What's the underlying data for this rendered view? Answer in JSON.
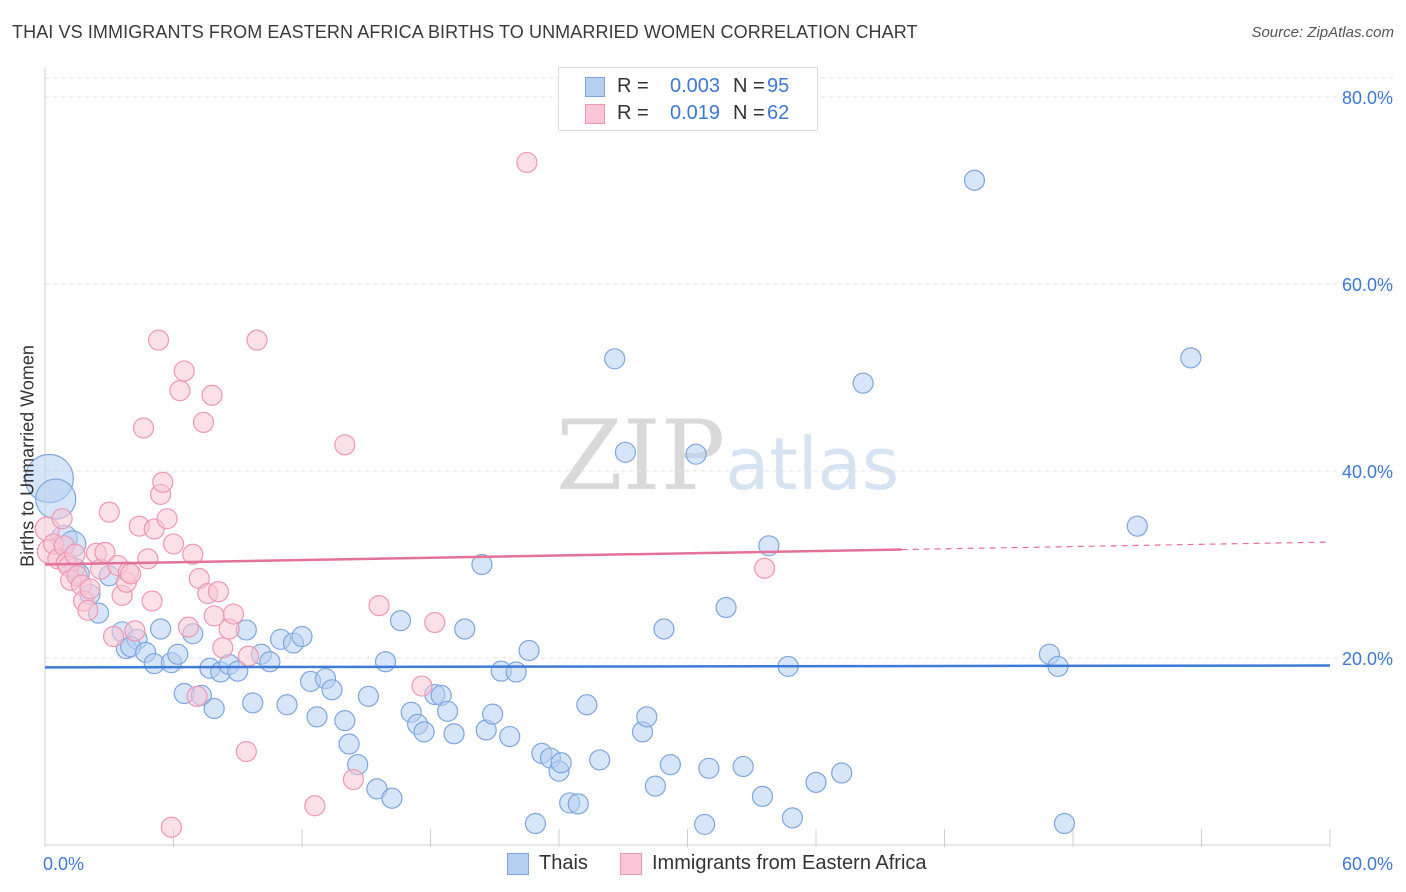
{
  "title": "THAI VS IMMIGRANTS FROM EASTERN AFRICA BIRTHS TO UNMARRIED WOMEN CORRELATION CHART",
  "source": "Source: ZipAtlas.com",
  "watermark": {
    "zip": "ZIP",
    "atlas": "atlas"
  },
  "legend": {
    "rows": [
      {
        "r_label": "R =",
        "r_value": "0.003",
        "n_label": "N =",
        "n_value": "95"
      },
      {
        "r_label": "R =",
        "r_value": "0.019",
        "n_label": "N =",
        "n_value": "62"
      }
    ]
  },
  "bottom_legend": [
    "Thais",
    "Immigrants from Eastern Africa"
  ],
  "colors": {
    "thais_fill": "#b7d0f2",
    "thais_stroke": "#7ea6de",
    "thais_line": "#3d7bd6",
    "eaf_fill": "#f8c6d6",
    "eaf_stroke": "#ee97b4",
    "eaf_line": "#e3719a",
    "axis_text": "#3f78d0",
    "grid": "#e2e2e2"
  },
  "chart_data": {
    "type": "scatter",
    "title": "THAI VS IMMIGRANTS FROM EASTERN AFRICA BIRTHS TO UNMARRIED WOMEN CORRELATION CHART",
    "xlabel": "",
    "ylabel": "Births to Unmarried Women",
    "xlim": [
      0,
      60
    ],
    "ylim": [
      0,
      80
    ],
    "x_tick_labels": [
      "0.0%",
      "60.0%"
    ],
    "y_tick_labels": [
      "20.0%",
      "40.0%",
      "60.0%",
      "80.0%"
    ],
    "y_ticks": [
      20,
      40,
      60,
      80
    ],
    "x_ticks": [
      0,
      6,
      12,
      18,
      24,
      30,
      36,
      42,
      48,
      54,
      60
    ],
    "series": [
      {
        "name": "Thais",
        "r": 0.003,
        "n": 95,
        "trend": {
          "x": [
            0,
            60
          ],
          "y": [
            19.0,
            19.2
          ],
          "dashed_from": null
        },
        "points": [
          [
            0.2,
            39.2,
            2.4
          ],
          [
            0.5,
            37.0,
            2.0
          ],
          [
            0.9,
            32.8,
            1.3
          ],
          [
            1.3,
            32.2,
            1.3
          ],
          [
            1.4,
            29.6,
            1.0
          ],
          [
            1.6,
            29.0,
            1.0
          ],
          [
            2.1,
            26.8,
            1.0
          ],
          [
            2.5,
            24.8,
            1.0
          ],
          [
            3.0,
            28.8,
            1.0
          ],
          [
            3.6,
            22.8,
            1.0
          ],
          [
            3.8,
            21.0,
            1.0
          ],
          [
            4.3,
            22.0,
            1.0
          ],
          [
            4.0,
            21.2,
            1.0
          ],
          [
            4.7,
            20.6,
            1.0
          ],
          [
            5.1,
            19.4,
            1.0
          ],
          [
            5.4,
            23.1,
            1.0
          ],
          [
            5.9,
            19.5,
            1.0
          ],
          [
            6.2,
            20.4,
            1.0
          ],
          [
            6.5,
            16.2,
            1.0
          ],
          [
            6.9,
            22.6,
            1.0
          ],
          [
            7.3,
            16.0,
            1.0
          ],
          [
            7.7,
            18.9,
            1.0
          ],
          [
            7.9,
            14.6,
            1.0
          ],
          [
            8.2,
            18.5,
            1.0
          ],
          [
            8.6,
            19.3,
            1.0
          ],
          [
            9.0,
            18.6,
            1.0
          ],
          [
            9.4,
            23.0,
            1.0
          ],
          [
            9.7,
            15.2,
            1.0
          ],
          [
            10.1,
            20.4,
            1.0
          ],
          [
            10.5,
            19.6,
            1.0
          ],
          [
            11.0,
            22.0,
            1.0
          ],
          [
            11.3,
            15.0,
            1.0
          ],
          [
            11.6,
            21.6,
            1.0
          ],
          [
            12.0,
            22.3,
            1.0
          ],
          [
            12.4,
            17.5,
            1.0
          ],
          [
            12.7,
            13.7,
            1.0
          ],
          [
            13.1,
            17.8,
            1.0
          ],
          [
            13.4,
            16.6,
            1.0
          ],
          [
            14.0,
            13.3,
            1.0
          ],
          [
            14.2,
            10.8,
            1.0
          ],
          [
            14.6,
            8.6,
            1.0
          ],
          [
            15.1,
            15.9,
            1.0
          ],
          [
            15.5,
            6.0,
            1.0
          ],
          [
            15.9,
            19.6,
            1.0
          ],
          [
            16.2,
            5.0,
            1.0
          ],
          [
            16.6,
            24.0,
            1.0
          ],
          [
            17.1,
            14.2,
            1.0
          ],
          [
            17.4,
            12.9,
            1.0
          ],
          [
            17.7,
            12.1,
            1.0
          ],
          [
            18.2,
            16.1,
            1.0
          ],
          [
            18.5,
            16.0,
            1.0
          ],
          [
            18.8,
            14.3,
            1.0
          ],
          [
            19.1,
            11.9,
            1.0
          ],
          [
            19.6,
            23.1,
            1.0
          ],
          [
            20.4,
            30.0,
            1.0
          ],
          [
            20.6,
            12.3,
            1.0
          ],
          [
            20.9,
            14.0,
            1.0
          ],
          [
            21.3,
            18.6,
            1.0
          ],
          [
            21.7,
            11.6,
            1.0
          ],
          [
            22.0,
            18.5,
            1.0
          ],
          [
            22.6,
            20.8,
            1.0
          ],
          [
            22.9,
            2.3,
            1.0
          ],
          [
            23.2,
            9.8,
            1.0
          ],
          [
            23.6,
            9.3,
            1.0
          ],
          [
            24.0,
            7.9,
            1.0
          ],
          [
            24.1,
            8.8,
            1.0
          ],
          [
            24.5,
            4.5,
            1.0
          ],
          [
            24.9,
            4.4,
            1.0
          ],
          [
            25.3,
            15.0,
            1.0
          ],
          [
            25.9,
            9.1,
            1.0
          ],
          [
            26.6,
            52.0,
            1.0
          ],
          [
            27.1,
            42.0,
            1.0
          ],
          [
            27.9,
            12.1,
            1.0
          ],
          [
            28.1,
            13.7,
            1.0
          ],
          [
            28.5,
            6.3,
            1.0
          ],
          [
            28.9,
            23.1,
            1.0
          ],
          [
            29.2,
            8.6,
            1.0
          ],
          [
            30.4,
            41.8,
            1.0
          ],
          [
            30.8,
            2.2,
            1.0
          ],
          [
            31.0,
            8.2,
            1.0
          ],
          [
            31.8,
            25.4,
            1.0
          ],
          [
            32.6,
            8.4,
            1.0
          ],
          [
            33.5,
            5.2,
            1.0
          ],
          [
            33.8,
            32.0,
            1.0
          ],
          [
            34.7,
            19.1,
            1.0
          ],
          [
            34.9,
            2.9,
            1.0
          ],
          [
            36.0,
            6.7,
            1.0
          ],
          [
            37.2,
            7.7,
            1.0
          ],
          [
            38.2,
            49.4,
            1.0
          ],
          [
            43.4,
            71.1,
            1.0
          ],
          [
            46.9,
            20.4,
            1.0
          ],
          [
            47.3,
            19.1,
            1.0
          ],
          [
            47.6,
            2.3,
            1.0
          ],
          [
            51.0,
            34.1,
            1.0
          ],
          [
            53.5,
            52.1,
            1.0
          ]
        ]
      },
      {
        "name": "Immigrants from Eastern Africa",
        "r": 0.019,
        "n": 62,
        "trend": {
          "x": [
            0,
            60
          ],
          "y": [
            30.0,
            32.4
          ],
          "dashed_from": 40
        },
        "points": [
          [
            0.1,
            33.8,
            1.2
          ],
          [
            0.2,
            31.4,
            1.2
          ],
          [
            0.4,
            32.2,
            1.0
          ],
          [
            0.6,
            30.6,
            1.0
          ],
          [
            0.8,
            34.9,
            1.0
          ],
          [
            0.9,
            32.0,
            1.0
          ],
          [
            1.0,
            30.2,
            1.0
          ],
          [
            1.1,
            29.8,
            1.0
          ],
          [
            1.2,
            28.3,
            1.0
          ],
          [
            1.4,
            31.1,
            1.0
          ],
          [
            1.5,
            28.8,
            1.0
          ],
          [
            1.7,
            27.8,
            1.0
          ],
          [
            1.8,
            26.1,
            1.0
          ],
          [
            2.0,
            25.1,
            1.0
          ],
          [
            2.1,
            27.4,
            1.0
          ],
          [
            2.4,
            31.2,
            1.0
          ],
          [
            2.6,
            29.5,
            1.0
          ],
          [
            2.8,
            31.3,
            1.0
          ],
          [
            3.0,
            35.6,
            1.0
          ],
          [
            3.2,
            22.3,
            1.0
          ],
          [
            3.4,
            29.9,
            1.0
          ],
          [
            3.6,
            26.7,
            1.0
          ],
          [
            3.8,
            28.1,
            1.0
          ],
          [
            3.9,
            29.2,
            1.0
          ],
          [
            4.0,
            29.0,
            1.0
          ],
          [
            4.2,
            22.9,
            1.0
          ],
          [
            4.4,
            34.1,
            1.0
          ],
          [
            4.6,
            44.6,
            1.0
          ],
          [
            4.8,
            30.6,
            1.0
          ],
          [
            5.0,
            26.1,
            1.0
          ],
          [
            5.1,
            33.8,
            1.0
          ],
          [
            5.3,
            54.0,
            1.0
          ],
          [
            5.4,
            37.5,
            1.0
          ],
          [
            5.5,
            38.8,
            1.0
          ],
          [
            5.7,
            34.9,
            1.0
          ],
          [
            5.9,
            1.9,
            1.0
          ],
          [
            6.0,
            32.2,
            1.0
          ],
          [
            6.3,
            48.6,
            1.0
          ],
          [
            6.5,
            50.7,
            1.0
          ],
          [
            6.7,
            23.3,
            1.0
          ],
          [
            6.9,
            31.1,
            1.0
          ],
          [
            7.1,
            15.9,
            1.0
          ],
          [
            7.2,
            28.5,
            1.0
          ],
          [
            7.4,
            45.2,
            1.0
          ],
          [
            7.6,
            26.9,
            1.0
          ],
          [
            7.8,
            48.1,
            1.0
          ],
          [
            7.9,
            24.5,
            1.0
          ],
          [
            8.1,
            27.1,
            1.0
          ],
          [
            8.3,
            21.1,
            1.0
          ],
          [
            8.6,
            23.1,
            1.0
          ],
          [
            8.8,
            24.7,
            1.0
          ],
          [
            9.4,
            10.0,
            1.0
          ],
          [
            9.5,
            20.2,
            1.0
          ],
          [
            9.9,
            54.0,
            1.0
          ],
          [
            12.6,
            4.2,
            1.0
          ],
          [
            14.0,
            42.8,
            1.0
          ],
          [
            14.4,
            7.0,
            1.0
          ],
          [
            15.6,
            25.6,
            1.0
          ],
          [
            17.6,
            17.0,
            1.0
          ],
          [
            18.2,
            23.8,
            1.0
          ],
          [
            22.5,
            73.0,
            1.0
          ],
          [
            33.6,
            29.6,
            1.0
          ]
        ]
      }
    ]
  }
}
